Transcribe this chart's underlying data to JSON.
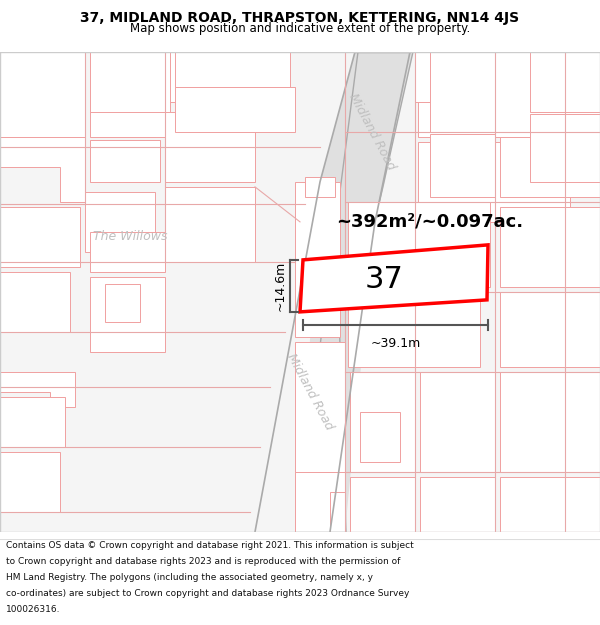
{
  "title_line1": "37, MIDLAND ROAD, THRAPSTON, KETTERING, NN14 4JS",
  "title_line2": "Map shows position and indicative extent of the property.",
  "footer_text": "Contains OS data © Crown copyright and database right 2021. This information is subject to Crown copyright and database rights 2023 and is reproduced with the permission of HM Land Registry. The polygons (including the associated geometry, namely x, y co-ordinates) are subject to Crown copyright and database rights 2023 Ordnance Survey 100026316.",
  "area_text": "~392m²/~0.097ac.",
  "number_label": "37",
  "width_label": "~39.1m",
  "height_label": "~14.6m",
  "map_bg": "#f5f5f5",
  "road_fill": "#e0e0e0",
  "road_line_color": "#e8a8a8",
  "highlight_color": "#ff0000",
  "road_label_color": "#c0c0c0",
  "building_fill": "#ffffff",
  "building_ec": "#f0a0a0",
  "dim_line_color": "#555555",
  "title_fontsize": 10,
  "subtitle_fontsize": 8.5,
  "footer_fontsize": 6.5
}
